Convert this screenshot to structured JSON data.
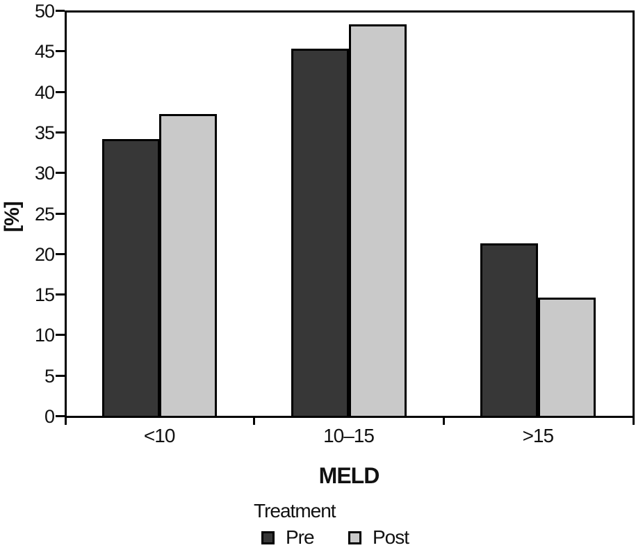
{
  "chart_data": {
    "type": "bar",
    "title": "",
    "xlabel": "MELD",
    "ylabel": "[%]",
    "categories": [
      "<10",
      "10–15",
      ">15"
    ],
    "series": [
      {
        "name": "Pre",
        "color": "#373737",
        "values": [
          34.4,
          45.5,
          21.5
        ]
      },
      {
        "name": "Post",
        "color": "#c9c9c9",
        "values": [
          37.5,
          48.5,
          14.8
        ]
      }
    ],
    "ylim": [
      0,
      50
    ],
    "ytick_step": 5,
    "grid": false,
    "legend": {
      "title": "Treatment",
      "position": "bottom"
    },
    "bar_border_color": "#000000",
    "frame_color": "#000000",
    "background_color": "#ffffff"
  }
}
